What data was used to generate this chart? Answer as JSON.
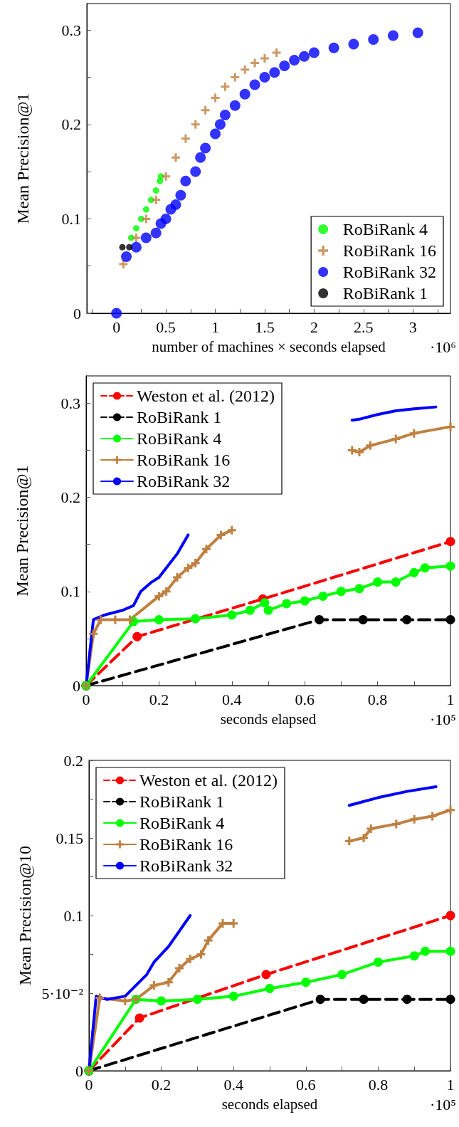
{
  "chart_data": [
    {
      "type": "scatter",
      "xlabel": "number of machines × seconds elapsed",
      "ylabel": "Mean Precision@1",
      "annotations": [
        "·10⁶"
      ],
      "xlim": [
        -0.3,
        3.38
      ],
      "xticks": [
        {
          "value": -0.25,
          "label": null
        },
        0,
        {
          "value": 0.25,
          "label": null
        },
        0.5,
        {
          "value": 0.75,
          "label": null
        },
        1,
        {
          "value": 1.25,
          "label": null
        },
        1.5,
        {
          "value": 1.75,
          "label": null
        },
        2,
        {
          "value": 2.25,
          "label": null
        },
        2.5,
        {
          "value": 2.75,
          "label": null
        },
        3,
        {
          "value": 3.25,
          "label": null
        }
      ],
      "ylim": [
        0,
        0.328
      ],
      "yticks": [
        0,
        {
          "value": 0.05,
          "label": null
        },
        0.1,
        {
          "value": 0.15,
          "label": null
        },
        0.2,
        {
          "value": 0.25,
          "label": null
        },
        0.3
      ],
      "legend": "bottom right",
      "series": [
        {
          "name": "RoBiRank 4",
          "color": "#00ff00",
          "marker": "circle",
          "x": [
            0.15,
            0.2,
            0.25,
            0.3,
            0.35,
            0.4,
            0.44,
            0.45
          ],
          "values": [
            0.08,
            0.09,
            0.1,
            0.11,
            0.12,
            0.13,
            0.14,
            0.145
          ]
        },
        {
          "name": "RoBiRank 16",
          "color": "#bf8040",
          "marker": "cross",
          "x": [
            0.07,
            0.2,
            0.3,
            0.4,
            0.5,
            0.6,
            0.7,
            0.8,
            0.9,
            1.0,
            1.1,
            1.2,
            1.3,
            1.4,
            1.5,
            1.62
          ],
          "values": [
            0.052,
            0.08,
            0.1,
            0.12,
            0.145,
            0.165,
            0.185,
            0.2,
            0.215,
            0.228,
            0.24,
            0.25,
            0.258,
            0.265,
            0.27,
            0.276
          ]
        },
        {
          "name": "RoBiRank 32",
          "color": "#0000ff",
          "marker": "circle",
          "x": [
            0,
            0.1,
            0.2,
            0.3,
            0.4,
            0.45,
            0.5,
            0.55,
            0.6,
            0.65,
            0.7,
            0.8,
            0.85,
            0.9,
            1.0,
            1.05,
            1.1,
            1.2,
            1.3,
            1.4,
            1.5,
            1.6,
            1.7,
            1.8,
            1.9,
            2.0,
            2.2,
            2.4,
            2.6,
            2.8,
            3.05
          ],
          "values": [
            0,
            0.06,
            0.07,
            0.08,
            0.085,
            0.095,
            0.1,
            0.11,
            0.115,
            0.125,
            0.14,
            0.15,
            0.165,
            0.175,
            0.19,
            0.2,
            0.21,
            0.22,
            0.232,
            0.242,
            0.25,
            0.255,
            0.262,
            0.268,
            0.272,
            0.276,
            0.281,
            0.285,
            0.29,
            0.294,
            0.297
          ]
        },
        {
          "name": "RoBiRank 1",
          "color": "#000000",
          "marker": "circle",
          "x": [
            0.06,
            0.13
          ],
          "values": [
            0.07,
            0.07
          ]
        }
      ]
    },
    {
      "type": "line",
      "xlabel": "seconds elapsed",
      "ylabel": "Mean Precision@1",
      "annotations": [
        "·10⁵"
      ],
      "xlim": [
        0,
        1
      ],
      "xticks": [
        0,
        {
          "value": 0.1,
          "label": null
        },
        0.2,
        {
          "value": 0.3,
          "label": null
        },
        0.4,
        {
          "value": 0.5,
          "label": null
        },
        0.6,
        {
          "value": 0.7,
          "label": null
        },
        0.8,
        {
          "value": 0.9,
          "label": null
        },
        1
      ],
      "ylim": [
        0,
        0.329
      ],
      "yticks": [
        0,
        {
          "value": 0.05,
          "label": null
        },
        0.1,
        {
          "value": 0.15,
          "label": null
        },
        0.2,
        {
          "value": 0.25,
          "label": null
        },
        0.3
      ],
      "legend": "top left",
      "series": [
        {
          "name": "Weston et al. (2012)",
          "color": "#ff0000",
          "marker": "circle",
          "line_style": "dashed",
          "x": [
            0,
            0.14,
            0.485,
            1
          ],
          "values": [
            0,
            0.052,
            0.092,
            0.153
          ]
        },
        {
          "name": "RoBiRank 1",
          "color": "#000000",
          "marker": "circle",
          "line_style": "dashed",
          "x": [
            0,
            0.64,
            0.76,
            0.88,
            1
          ],
          "values": [
            0,
            0.07,
            0.07,
            0.07,
            0.07
          ]
        },
        {
          "name": "RoBiRank 4",
          "color": "#00ff00",
          "marker": "circle",
          "line_style": "solid",
          "x": [
            0,
            0.13,
            0.2,
            0.3,
            0.4,
            0.45,
            0.49,
            0.5,
            0.55,
            0.6,
            0.65,
            0.7,
            0.75,
            0.8,
            0.85,
            0.9,
            0.93,
            1
          ],
          "values": [
            0,
            0.068,
            0.07,
            0.071,
            0.075,
            0.08,
            0.088,
            0.08,
            0.087,
            0.09,
            0.095,
            0.1,
            0.103,
            0.11,
            0.11,
            0.12,
            0.125,
            0.127
          ]
        },
        {
          "name": "RoBiRank 16",
          "color": "#bf8040",
          "marker": "cross",
          "line_style": "solid",
          "x": [
            0,
            0.02,
            0.04,
            0.08,
            0.12,
            0.2,
            0.22,
            0.25,
            0.28,
            0.3,
            0.33,
            0.37,
            0.4,
            0.5,
            0.73,
            0.75,
            0.78,
            0.85,
            0.9,
            1
          ],
          "values": [
            0,
            0.055,
            0.07,
            0.07,
            0.07,
            0.095,
            0.1,
            0.115,
            0.125,
            0.13,
            0.145,
            0.16,
            0.165,
            null,
            0.25,
            0.248,
            0.255,
            0.262,
            0.268,
            0.275
          ]
        },
        {
          "name": "RoBiRank 32",
          "color": "#0000ff",
          "marker": "none",
          "line_style": "solid",
          "x": [
            0,
            0.02,
            0.05,
            0.1,
            0.13,
            0.15,
            0.18,
            0.2,
            0.22,
            0.25,
            0.28,
            0.5,
            0.73,
            0.75,
            0.8,
            0.85,
            0.9,
            0.96
          ],
          "values": [
            0,
            0.07,
            0.075,
            0.08,
            0.085,
            0.1,
            0.11,
            0.115,
            0.125,
            0.14,
            0.16,
            null,
            0.282,
            0.283,
            0.288,
            0.292,
            0.294,
            0.296
          ]
        }
      ]
    },
    {
      "type": "line",
      "xlabel": "seconds elapsed",
      "ylabel": "Mean Precision@10",
      "annotations": [
        "·10⁵"
      ],
      "xlim": [
        0,
        1
      ],
      "xticks": [
        0,
        {
          "value": 0.1,
          "label": null
        },
        0.2,
        {
          "value": 0.3,
          "label": null
        },
        0.4,
        {
          "value": 0.5,
          "label": null
        },
        0.6,
        {
          "value": 0.7,
          "label": null
        },
        0.8,
        {
          "value": 0.9,
          "label": null
        },
        1
      ],
      "ylim": [
        0,
        0.2
      ],
      "yticks": [
        0,
        {
          "value": 0.025,
          "label": null
        },
        {
          "value": 0.05,
          "label": "5·10⁻²"
        },
        {
          "value": 0.075,
          "label": null
        },
        0.1,
        {
          "value": 0.125,
          "label": null
        },
        0.15,
        {
          "value": 0.175,
          "label": null
        },
        0.2
      ],
      "legend": "top left",
      "series": [
        {
          "name": "Weston et al. (2012)",
          "color": "#ff0000",
          "marker": "circle",
          "line_style": "dashed",
          "x": [
            0,
            0.14,
            0.49,
            1
          ],
          "values": [
            0,
            0.034,
            0.062,
            0.1
          ]
        },
        {
          "name": "RoBiRank 1",
          "color": "#000000",
          "marker": "circle",
          "line_style": "dashed",
          "x": [
            0,
            0.64,
            0.76,
            0.88,
            1
          ],
          "values": [
            0,
            0.046,
            0.046,
            0.046,
            0.046
          ]
        },
        {
          "name": "RoBiRank 4",
          "color": "#00ff00",
          "marker": "circle",
          "line_style": "solid",
          "x": [
            0,
            0.13,
            0.2,
            0.3,
            0.4,
            0.5,
            0.6,
            0.7,
            0.8,
            0.9,
            0.93,
            1
          ],
          "values": [
            0,
            0.046,
            0.045,
            0.046,
            0.048,
            0.053,
            0.057,
            0.062,
            0.07,
            0.074,
            0.077,
            0.077
          ]
        },
        {
          "name": "RoBiRank 16",
          "color": "#bf8040",
          "marker": "cross",
          "line_style": "solid",
          "x": [
            0,
            0.03,
            0.1,
            0.13,
            0.18,
            0.22,
            0.25,
            0.28,
            0.31,
            0.33,
            0.37,
            0.4,
            0.5,
            0.72,
            0.76,
            0.78,
            0.85,
            0.9,
            0.95,
            1
          ],
          "values": [
            0,
            0.047,
            0.045,
            0.046,
            0.055,
            0.057,
            0.066,
            0.072,
            0.075,
            0.084,
            0.095,
            0.095,
            null,
            0.148,
            0.15,
            0.156,
            0.159,
            0.162,
            0.164,
            0.168
          ]
        },
        {
          "name": "RoBiRank 32",
          "color": "#0000ff",
          "marker": "none",
          "line_style": "solid",
          "x": [
            0,
            0.02,
            0.05,
            0.1,
            0.13,
            0.16,
            0.18,
            0.22,
            0.25,
            0.28,
            0.5,
            0.72,
            0.8,
            0.88,
            0.96
          ],
          "values": [
            0,
            0.048,
            0.046,
            0.048,
            0.055,
            0.062,
            0.07,
            0.08,
            0.09,
            0.1,
            null,
            0.171,
            0.176,
            0.18,
            0.183
          ]
        }
      ]
    }
  ]
}
